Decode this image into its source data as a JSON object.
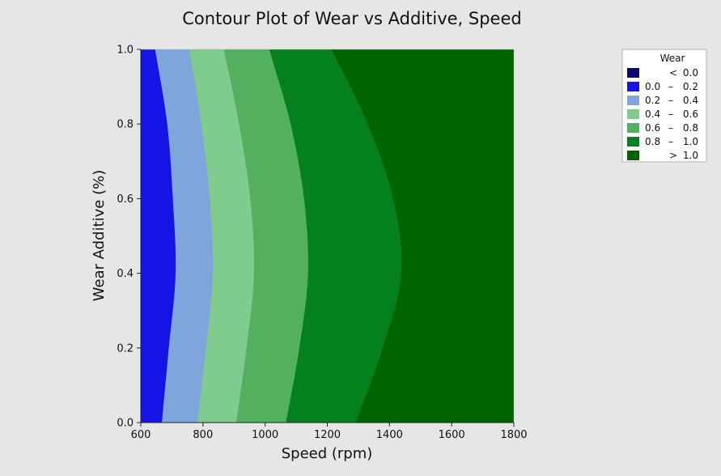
{
  "chart_data": {
    "type": "contour",
    "title": "Contour Plot of Wear vs Additive, Speed",
    "xlabel": "Speed (rpm)",
    "ylabel": "Wear Additive (%)",
    "xlim": [
      600,
      1800
    ],
    "ylim": [
      0.0,
      1.0
    ],
    "x_ticks": [
      "600",
      "800",
      "1000",
      "1200",
      "1400",
      "1600",
      "1800"
    ],
    "y_ticks": [
      "0.0",
      "0.2",
      "0.4",
      "0.6",
      "0.8",
      "1.0"
    ],
    "legend_placement": "top-right",
    "legend": {
      "title": "Wear",
      "entries": [
        {
          "low": "",
          "sep": "<",
          "high": "0.0",
          "color": "#0a0a6e"
        },
        {
          "low": "0.0",
          "sep": "–",
          "high": "0.2",
          "color": "#1414e6"
        },
        {
          "low": "0.2",
          "sep": "–",
          "high": "0.4",
          "color": "#7ea6dc"
        },
        {
          "low": "0.4",
          "sep": "–",
          "high": "0.6",
          "color": "#80cc8e"
        },
        {
          "low": "0.6",
          "sep": "–",
          "high": "0.8",
          "color": "#52b05e"
        },
        {
          "low": "0.8",
          "sep": "–",
          "high": "1.0",
          "color": "#05801e"
        },
        {
          "low": "",
          "sep": ">",
          "high": "1.0",
          "color": "#006400"
        }
      ]
    },
    "contour_boundaries": [
      {
        "level": 0.2,
        "points": [
          [
            668,
            0.0
          ],
          [
            690,
            0.2
          ],
          [
            712,
            0.4
          ],
          [
            703,
            0.6
          ],
          [
            685,
            0.8
          ],
          [
            646,
            1.0
          ]
        ]
      },
      {
        "level": 0.4,
        "points": [
          [
            782,
            0.0
          ],
          [
            810,
            0.2
          ],
          [
            832,
            0.4
          ],
          [
            822,
            0.6
          ],
          [
            795,
            0.8
          ],
          [
            756,
            1.0
          ]
        ]
      },
      {
        "level": 0.6,
        "points": [
          [
            907,
            0.0
          ],
          [
            940,
            0.2
          ],
          [
            964,
            0.4
          ],
          [
            952,
            0.6
          ],
          [
            916,
            0.8
          ],
          [
            867,
            1.0
          ]
        ]
      },
      {
        "level": 0.8,
        "points": [
          [
            1067,
            0.0
          ],
          [
            1110,
            0.2
          ],
          [
            1138,
            0.4
          ],
          [
            1125,
            0.6
          ],
          [
            1082,
            0.8
          ],
          [
            1013,
            1.0
          ]
        ]
      },
      {
        "level": 1.0,
        "points": [
          [
            1292,
            0.0
          ],
          [
            1378,
            0.2
          ],
          [
            1438,
            0.4
          ],
          [
            1412,
            0.6
          ],
          [
            1330,
            0.8
          ],
          [
            1213,
            1.0
          ]
        ]
      }
    ]
  }
}
